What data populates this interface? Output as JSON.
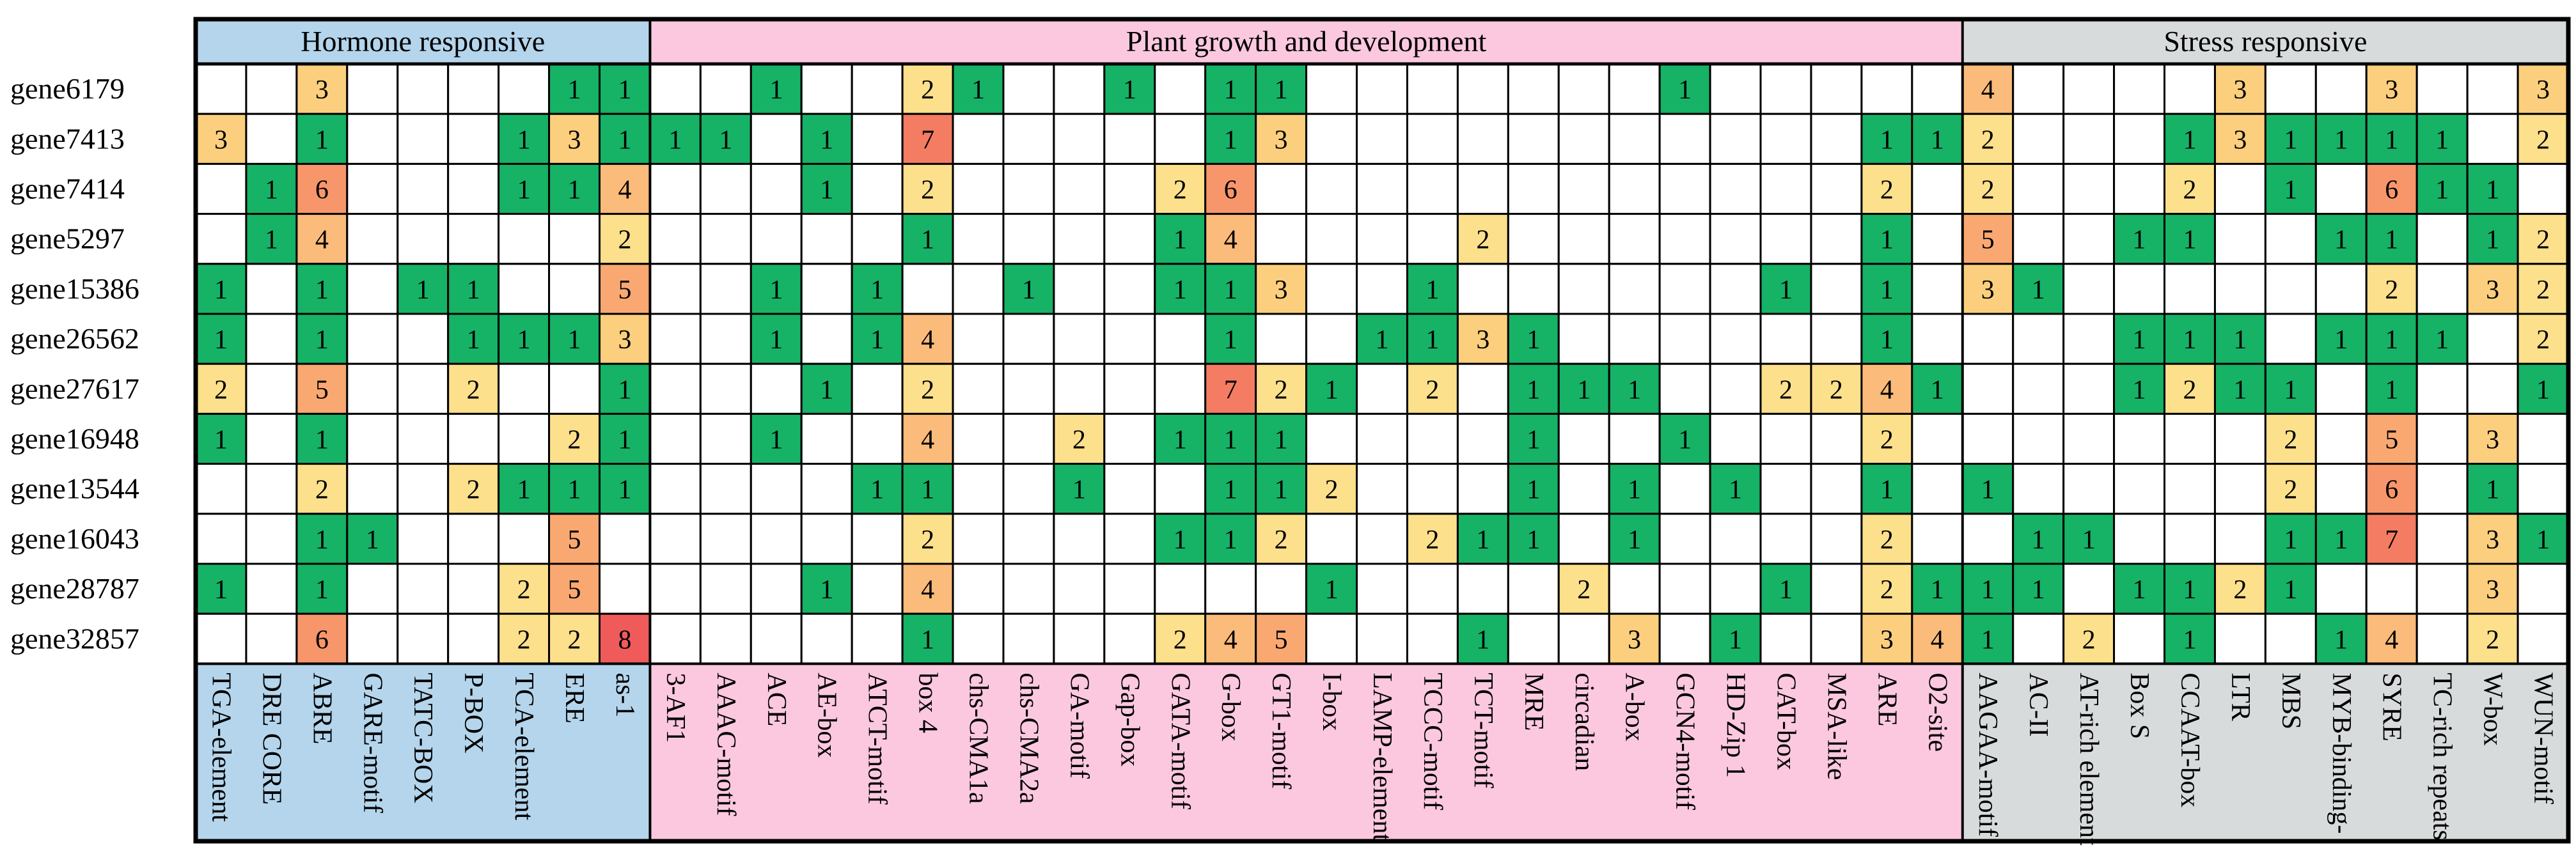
{
  "chart_data": {
    "type": "heatmap",
    "groups": [
      {
        "name": "Hormone responsive",
        "count": 9,
        "color": "#b4d5ec"
      },
      {
        "name": "Plant growth and development",
        "count": 26,
        "color": "#fcc8df"
      },
      {
        "name": "Stress responsive",
        "count": 12,
        "color": "#d8dbdc"
      }
    ],
    "columns": [
      "TGA-element",
      "DRE CORE",
      "ABRE",
      "GARE-motif",
      "TATC-BOX",
      "P-BOX",
      "TCA-element",
      "ERE",
      "as-1",
      "3-AF1",
      "AAAC-motif",
      "ACE",
      "AE-box",
      "ATCT-motif",
      "box 4",
      "chs-CMA1a",
      "chs-CMA2a",
      "GA-motif",
      "Gap-box",
      "GATA-motif",
      "G-box",
      "GT1-motif",
      "I-box",
      "LAMP-element",
      "TCCC-motif",
      "TCT-motif",
      "MRE",
      "circadian",
      "A-box",
      "GCN4-motif",
      "HD-Zip 1",
      "CAT-box",
      "MSA-like",
      "ARE",
      "O2-site",
      "AAGAA-motif",
      "AC-II",
      "AT-rich  element",
      "Box S",
      "CCAAT-box",
      "LTR",
      "MBS",
      "MYB-binding-",
      "SYRE",
      "TC-rich repeats",
      "W-box",
      "WUN-motif"
    ],
    "rows": [
      "gene6179",
      "gene7413",
      "gene7414",
      "gene5297",
      "gene15386",
      "gene26562",
      "gene27617",
      "gene16948",
      "gene13544",
      "gene16043",
      "gene28787",
      "gene32857"
    ],
    "values": [
      [
        0,
        0,
        3,
        0,
        0,
        0,
        0,
        1,
        1,
        0,
        0,
        1,
        0,
        0,
        2,
        1,
        0,
        0,
        1,
        0,
        1,
        1,
        0,
        0,
        0,
        0,
        0,
        0,
        0,
        1,
        0,
        0,
        0,
        0,
        0,
        4,
        0,
        0,
        0,
        0,
        3,
        0,
        0,
        3,
        0,
        0,
        3
      ],
      [
        3,
        0,
        1,
        0,
        0,
        0,
        1,
        3,
        1,
        1,
        1,
        0,
        1,
        0,
        7,
        0,
        0,
        0,
        0,
        0,
        1,
        3,
        0,
        0,
        0,
        0,
        0,
        0,
        0,
        0,
        0,
        0,
        0,
        1,
        1,
        2,
        0,
        0,
        0,
        1,
        3,
        1,
        1,
        1,
        1,
        0,
        2
      ],
      [
        0,
        1,
        6,
        0,
        0,
        0,
        1,
        1,
        4,
        0,
        0,
        0,
        1,
        0,
        2,
        0,
        0,
        0,
        0,
        2,
        6,
        0,
        0,
        0,
        0,
        0,
        0,
        0,
        0,
        0,
        0,
        0,
        0,
        2,
        0,
        2,
        0,
        0,
        0,
        2,
        0,
        1,
        0,
        6,
        1,
        1,
        0
      ],
      [
        0,
        1,
        4,
        0,
        0,
        0,
        0,
        0,
        2,
        0,
        0,
        0,
        0,
        0,
        1,
        0,
        0,
        0,
        0,
        1,
        4,
        0,
        0,
        0,
        0,
        2,
        0,
        0,
        0,
        0,
        0,
        0,
        0,
        1,
        0,
        5,
        0,
        0,
        1,
        1,
        0,
        0,
        1,
        1,
        0,
        1,
        2
      ],
      [
        1,
        0,
        1,
        0,
        1,
        1,
        0,
        0,
        5,
        0,
        0,
        1,
        0,
        1,
        0,
        0,
        1,
        0,
        0,
        1,
        1,
        3,
        0,
        0,
        1,
        0,
        0,
        0,
        0,
        0,
        0,
        1,
        0,
        1,
        0,
        3,
        1,
        0,
        0,
        0,
        0,
        0,
        0,
        2,
        0,
        3,
        2
      ],
      [
        1,
        0,
        1,
        0,
        0,
        1,
        1,
        1,
        3,
        0,
        0,
        1,
        0,
        1,
        4,
        0,
        0,
        0,
        0,
        0,
        1,
        0,
        0,
        1,
        1,
        3,
        1,
        0,
        0,
        0,
        0,
        0,
        0,
        1,
        0,
        0,
        0,
        0,
        1,
        1,
        1,
        0,
        1,
        1,
        1,
        0,
        2
      ],
      [
        2,
        0,
        5,
        0,
        0,
        2,
        0,
        0,
        1,
        0,
        0,
        0,
        1,
        0,
        2,
        0,
        0,
        0,
        0,
        0,
        7,
        2,
        1,
        0,
        2,
        0,
        1,
        1,
        1,
        0,
        0,
        2,
        2,
        4,
        1,
        0,
        0,
        0,
        1,
        2,
        1,
        1,
        0,
        1,
        0,
        0,
        1
      ],
      [
        1,
        0,
        1,
        0,
        0,
        0,
        0,
        2,
        1,
        0,
        0,
        1,
        0,
        0,
        4,
        0,
        0,
        2,
        0,
        1,
        1,
        1,
        0,
        0,
        0,
        0,
        1,
        0,
        0,
        1,
        0,
        0,
        0,
        2,
        0,
        0,
        0,
        0,
        0,
        0,
        0,
        2,
        0,
        5,
        0,
        3,
        0
      ],
      [
        0,
        0,
        2,
        0,
        0,
        2,
        1,
        1,
        1,
        0,
        0,
        0,
        0,
        1,
        1,
        0,
        0,
        1,
        0,
        0,
        1,
        1,
        2,
        0,
        0,
        0,
        1,
        0,
        1,
        0,
        1,
        0,
        0,
        1,
        0,
        1,
        0,
        0,
        0,
        0,
        0,
        2,
        0,
        6,
        0,
        1,
        0
      ],
      [
        0,
        0,
        1,
        1,
        0,
        0,
        0,
        5,
        0,
        0,
        0,
        0,
        0,
        0,
        2,
        0,
        0,
        0,
        0,
        1,
        1,
        2,
        0,
        0,
        2,
        1,
        1,
        0,
        1,
        0,
        0,
        0,
        0,
        2,
        0,
        0,
        1,
        1,
        0,
        0,
        0,
        1,
        1,
        7,
        0,
        3,
        1
      ],
      [
        1,
        0,
        1,
        0,
        0,
        0,
        2,
        5,
        0,
        0,
        0,
        0,
        1,
        0,
        4,
        0,
        0,
        0,
        0,
        0,
        0,
        0,
        1,
        0,
        0,
        0,
        0,
        2,
        0,
        0,
        0,
        1,
        0,
        2,
        1,
        1,
        1,
        0,
        1,
        1,
        2,
        1,
        0,
        0,
        0,
        3,
        0
      ],
      [
        0,
        0,
        6,
        0,
        0,
        0,
        2,
        2,
        8,
        0,
        0,
        0,
        0,
        0,
        1,
        0,
        0,
        0,
        0,
        2,
        4,
        5,
        0,
        0,
        0,
        1,
        0,
        0,
        3,
        0,
        1,
        0,
        0,
        3,
        4,
        1,
        0,
        2,
        0,
        1,
        0,
        0,
        1,
        4,
        0,
        2,
        0
      ]
    ],
    "legend_colors": {
      "0": "#ffffff",
      "1": "#16b266",
      "2": "#fde08c",
      "3": "#fccf7e",
      "4": "#fbbb7a",
      "5": "#faa872",
      "6": "#f8966b",
      "7": "#f47c62",
      "8": "#ef5b5b"
    }
  }
}
